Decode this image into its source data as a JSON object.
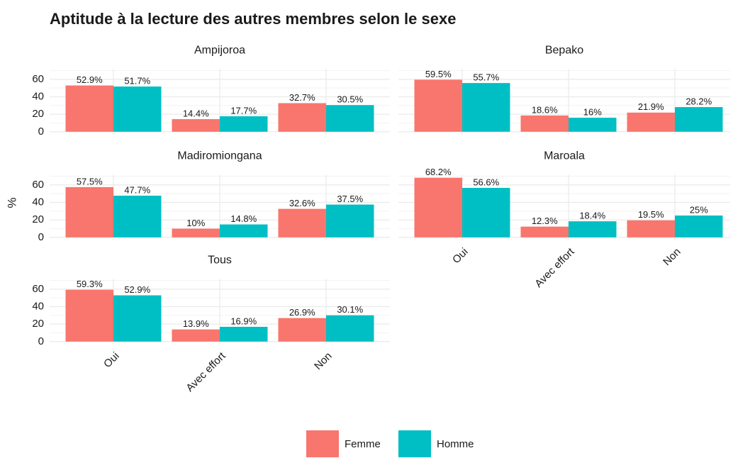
{
  "title": "Aptitude à la lecture des autres membres selon le sexe",
  "ylabel": "%",
  "categories": [
    "Oui",
    "Avec effort",
    "Non"
  ],
  "legend": [
    {
      "name": "Femme",
      "color": "#f8766d"
    },
    {
      "name": "Homme",
      "color": "#00bfc4"
    }
  ],
  "chart_data": [
    {
      "type": "bar",
      "title": "Ampijoroa",
      "ylim": [
        -3.4,
        71.6
      ],
      "yticks": [
        0,
        20,
        40,
        60
      ],
      "series": [
        {
          "values": [
            52.9,
            14.4,
            32.7
          ],
          "value_labels": [
            "52.9%",
            "14.4%",
            "32.7%"
          ]
        },
        {
          "values": [
            51.7,
            17.7,
            30.5
          ],
          "value_labels": [
            "51.7%",
            "17.7%",
            "30.5%"
          ]
        }
      ]
    },
    {
      "type": "bar",
      "title": "Bepako",
      "ylim": [
        -3.4,
        71.6
      ],
      "yticks": [
        0,
        20,
        40,
        60
      ],
      "series": [
        {
          "values": [
            59.5,
            18.6,
            21.9
          ],
          "value_labels": [
            "59.5%",
            "18.6%",
            "21.9%"
          ]
        },
        {
          "values": [
            55.7,
            16,
            28.2
          ],
          "value_labels": [
            "55.7%",
            "16%",
            "28.2%"
          ]
        }
      ]
    },
    {
      "type": "bar",
      "title": "Madiromiongana",
      "ylim": [
        -3.4,
        71.6
      ],
      "yticks": [
        0,
        20,
        40,
        60
      ],
      "series": [
        {
          "values": [
            57.5,
            10,
            32.6
          ],
          "value_labels": [
            "57.5%",
            "10%",
            "32.6%"
          ]
        },
        {
          "values": [
            47.7,
            14.8,
            37.5
          ],
          "value_labels": [
            "47.7%",
            "14.8%",
            "37.5%"
          ]
        }
      ]
    },
    {
      "type": "bar",
      "title": "Maroala",
      "ylim": [
        -3.4,
        71.6
      ],
      "yticks": [
        0,
        20,
        40,
        60
      ],
      "series": [
        {
          "values": [
            68.2,
            12.3,
            19.5
          ],
          "value_labels": [
            "68.2%",
            "12.3%",
            "19.5%"
          ]
        },
        {
          "values": [
            56.6,
            18.4,
            25
          ],
          "value_labels": [
            "56.6%",
            "18.4%",
            "25%"
          ]
        }
      ]
    },
    {
      "type": "bar",
      "title": "Tous",
      "ylim": [
        -3.4,
        71.6
      ],
      "yticks": [
        0,
        20,
        40,
        60
      ],
      "series": [
        {
          "values": [
            59.3,
            13.9,
            26.9
          ],
          "value_labels": [
            "59.3%",
            "13.9%",
            "26.9%"
          ]
        },
        {
          "values": [
            52.9,
            16.9,
            30.1
          ],
          "value_labels": [
            "52.9%",
            "16.9%",
            "30.1%"
          ]
        }
      ]
    }
  ]
}
